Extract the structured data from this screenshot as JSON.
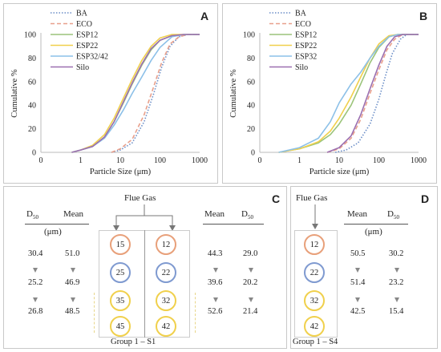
{
  "chart_data": [
    {
      "panel": "A",
      "type": "line",
      "xlabel": "Particle Size (μm)",
      "ylabel": "Cumulative %",
      "xscale": "log",
      "xlim": [
        0,
        1000
      ],
      "ylim": [
        0,
        100
      ],
      "xticks": [
        "0",
        "1",
        "10",
        "100",
        "1000"
      ],
      "yticks": [
        "0",
        "20",
        "40",
        "60",
        "80",
        "100"
      ],
      "legend_position": "top-left",
      "series": [
        {
          "name": "BA",
          "color": "#6b8ec7",
          "dash": "dotted",
          "points": [
            [
              6,
              0
            ],
            [
              10,
              2
            ],
            [
              20,
              8
            ],
            [
              40,
              26
            ],
            [
              70,
              50
            ],
            [
              110,
              72
            ],
            [
              180,
              90
            ],
            [
              300,
              98
            ],
            [
              500,
              100
            ],
            [
              1000,
              100
            ]
          ]
        },
        {
          "name": "ECO",
          "color": "#e8a08c",
          "dash": "dashed",
          "points": [
            [
              6,
              0
            ],
            [
              10,
              3
            ],
            [
              20,
              11
            ],
            [
              40,
              32
            ],
            [
              70,
              56
            ],
            [
              110,
              76
            ],
            [
              180,
              92
            ],
            [
              300,
              98
            ],
            [
              500,
              100
            ],
            [
              1000,
              100
            ]
          ]
        },
        {
          "name": "ESP12",
          "color": "#9bc47a",
          "dash": "solid",
          "points": [
            [
              0.6,
              0
            ],
            [
              1,
              2
            ],
            [
              2,
              5
            ],
            [
              4,
              13
            ],
            [
              7,
              26
            ],
            [
              12,
              42
            ],
            [
              20,
              58
            ],
            [
              35,
              74
            ],
            [
              60,
              87
            ],
            [
              100,
              95
            ],
            [
              200,
              99
            ],
            [
              400,
              100
            ],
            [
              1000,
              100
            ]
          ]
        },
        {
          "name": "ESP22",
          "color": "#f0d04c",
          "dash": "solid",
          "points": [
            [
              0.6,
              0
            ],
            [
              1,
              2
            ],
            [
              2,
              6
            ],
            [
              4,
              15
            ],
            [
              7,
              29
            ],
            [
              12,
              46
            ],
            [
              20,
              62
            ],
            [
              35,
              78
            ],
            [
              60,
              90
            ],
            [
              100,
              97
            ],
            [
              200,
              100
            ],
            [
              1000,
              100
            ]
          ]
        },
        {
          "name": "ESP32/42",
          "color": "#8cc0e8",
          "dash": "solid",
          "points": [
            [
              0.6,
              0
            ],
            [
              1,
              2
            ],
            [
              2,
              5
            ],
            [
              4,
              12
            ],
            [
              7,
              23
            ],
            [
              12,
              36
            ],
            [
              20,
              50
            ],
            [
              35,
              64
            ],
            [
              60,
              78
            ],
            [
              100,
              89
            ],
            [
              200,
              98
            ],
            [
              400,
              100
            ],
            [
              1000,
              100
            ]
          ]
        },
        {
          "name": "Silo",
          "color": "#9b6fb0",
          "dash": "solid",
          "points": [
            [
              0.6,
              0
            ],
            [
              1,
              2
            ],
            [
              2,
              5
            ],
            [
              4,
              13
            ],
            [
              7,
              26
            ],
            [
              12,
              43
            ],
            [
              20,
              59
            ],
            [
              35,
              75
            ],
            [
              60,
              88
            ],
            [
              100,
              95
            ],
            [
              200,
              99
            ],
            [
              400,
              100
            ],
            [
              1000,
              100
            ]
          ]
        }
      ]
    },
    {
      "panel": "B",
      "type": "line",
      "xlabel": "Particle size (μm)",
      "ylabel": "Cumulative %",
      "xscale": "log",
      "xlim": [
        0,
        1000
      ],
      "ylim": [
        0,
        100
      ],
      "xticks": [
        "0",
        "1",
        "10",
        "100",
        "1000"
      ],
      "yticks": [
        "0",
        "20",
        "40",
        "60",
        "80",
        "100"
      ],
      "legend_position": "top-left",
      "series": [
        {
          "name": "BA",
          "color": "#6b8ec7",
          "dash": "dotted",
          "points": [
            [
              8,
              0
            ],
            [
              15,
              2
            ],
            [
              30,
              8
            ],
            [
              60,
              24
            ],
            [
              100,
              45
            ],
            [
              150,
              66
            ],
            [
              220,
              84
            ],
            [
              350,
              96
            ],
            [
              500,
              100
            ],
            [
              1000,
              100
            ]
          ]
        },
        {
          "name": "ECO",
          "color": "#e8a08c",
          "dash": "dashed",
          "points": [
            [
              5,
              0
            ],
            [
              10,
              3
            ],
            [
              20,
              12
            ],
            [
              35,
              28
            ],
            [
              60,
              50
            ],
            [
              100,
              70
            ],
            [
              160,
              87
            ],
            [
              250,
              96
            ],
            [
              400,
              100
            ],
            [
              1000,
              100
            ]
          ]
        },
        {
          "name": "ESP12",
          "color": "#9bc47a",
          "dash": "solid",
          "points": [
            [
              0.3,
              0
            ],
            [
              1,
              3
            ],
            [
              3,
              8
            ],
            [
              6,
              15
            ],
            [
              10,
              24
            ],
            [
              20,
              40
            ],
            [
              35,
              58
            ],
            [
              60,
              76
            ],
            [
              100,
              89
            ],
            [
              180,
              98
            ],
            [
              300,
              100
            ],
            [
              1000,
              100
            ]
          ]
        },
        {
          "name": "ESP22",
          "color": "#f0d04c",
          "dash": "solid",
          "points": [
            [
              0.3,
              0
            ],
            [
              1,
              3
            ],
            [
              3,
              9
            ],
            [
              6,
              18
            ],
            [
              10,
              29
            ],
            [
              20,
              47
            ],
            [
              35,
              64
            ],
            [
              60,
              80
            ],
            [
              100,
              92
            ],
            [
              180,
              99
            ],
            [
              300,
              100
            ],
            [
              1000,
              100
            ]
          ]
        },
        {
          "name": "ESP32",
          "color": "#8cc0e8",
          "dash": "solid",
          "points": [
            [
              0.3,
              0
            ],
            [
              1,
              4
            ],
            [
              3,
              12
            ],
            [
              6,
              26
            ],
            [
              10,
              42
            ],
            [
              20,
              58
            ],
            [
              35,
              68
            ],
            [
              60,
              80
            ],
            [
              100,
              90
            ],
            [
              180,
              98
            ],
            [
              300,
              100
            ],
            [
              1000,
              100
            ]
          ]
        },
        {
          "name": "Silo",
          "color": "#9b6fb0",
          "dash": "solid",
          "points": [
            [
              5,
              0
            ],
            [
              10,
              4
            ],
            [
              20,
              14
            ],
            [
              35,
              32
            ],
            [
              60,
              54
            ],
            [
              100,
              74
            ],
            [
              160,
              90
            ],
            [
              250,
              98
            ],
            [
              400,
              100
            ],
            [
              1000,
              100
            ]
          ]
        }
      ]
    },
    {
      "panel": "C",
      "type": "table",
      "title": "Flue Gas",
      "group_label": "Group 1 – S1",
      "left_headers": {
        "d50": "D",
        "d50_sub": "50",
        "mean": "Mean",
        "unit": "(μm)"
      },
      "right_headers": {
        "d50": "D",
        "d50_sub": "50",
        "mean": "Mean"
      },
      "left_rows": [
        {
          "d50": "30.4",
          "mean": "51.0"
        },
        {
          "d50": "25.2",
          "mean": "46.9"
        },
        {
          "d50": "26.8",
          "mean": "48.5"
        }
      ],
      "right_rows": [
        {
          "mean": "44.3",
          "d50": "29.0"
        },
        {
          "mean": "39.6",
          "d50": "20.2"
        },
        {
          "mean": "52.6",
          "d50": "21.4"
        }
      ],
      "left_column_circles": [
        "15",
        "25",
        "35",
        "45"
      ],
      "right_column_circles": [
        "12",
        "22",
        "32",
        "42"
      ]
    },
    {
      "panel": "D",
      "type": "table",
      "title": "Flue Gas",
      "group_label": "Group 1 – S4",
      "headers": {
        "mean": "Mean",
        "d50": "D",
        "d50_sub": "50",
        "unit": "(μm)"
      },
      "rows": [
        {
          "mean": "50.5",
          "d50": "30.2"
        },
        {
          "mean": "51.4",
          "d50": "23.2"
        },
        {
          "mean": "42.5",
          "d50": "15.4"
        }
      ],
      "circles": [
        "12",
        "22",
        "32",
        "42"
      ]
    }
  ],
  "circle_colors": {
    "row1": "#e8a07a",
    "row2": "#7f9ad0",
    "row3": "#f0d04c",
    "row4": "#f0d04c"
  }
}
